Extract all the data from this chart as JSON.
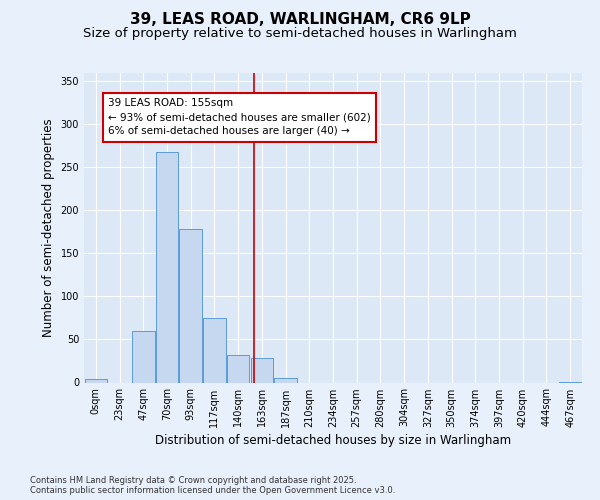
{
  "title": "39, LEAS ROAD, WARLINGHAM, CR6 9LP",
  "subtitle": "Size of property relative to semi-detached houses in Warlingham",
  "xlabel": "Distribution of semi-detached houses by size in Warlingham",
  "ylabel": "Number of semi-detached properties",
  "footnote": "Contains HM Land Registry data © Crown copyright and database right 2025.\nContains public sector information licensed under the Open Government Licence v3.0.",
  "bin_labels": [
    "0sqm",
    "23sqm",
    "47sqm",
    "70sqm",
    "93sqm",
    "117sqm",
    "140sqm",
    "163sqm",
    "187sqm",
    "210sqm",
    "234sqm",
    "257sqm",
    "280sqm",
    "304sqm",
    "327sqm",
    "350sqm",
    "374sqm",
    "397sqm",
    "420sqm",
    "444sqm",
    "467sqm"
  ],
  "bar_values": [
    4,
    0,
    60,
    268,
    178,
    75,
    32,
    28,
    5,
    0,
    0,
    0,
    0,
    0,
    0,
    0,
    0,
    0,
    0,
    0,
    1
  ],
  "bar_color": "#c5d8f0",
  "bar_edge_color": "#5b9bd5",
  "property_size": 155,
  "property_label": "39 LEAS ROAD: 155sqm",
  "pct_smaller": 93,
  "n_smaller": 602,
  "pct_larger": 6,
  "n_larger": 40,
  "vline_x_index": 6.652,
  "vline_color": "#cc0000",
  "annotation_box_color": "#cc0000",
  "annotation_text_line1": "39 LEAS ROAD: 155sqm",
  "annotation_text_line2": "← 93% of semi-detached houses are smaller (602)",
  "annotation_text_line3": "6% of semi-detached houses are larger (40) →",
  "ylim": [
    0,
    360
  ],
  "yticks": [
    0,
    50,
    100,
    150,
    200,
    250,
    300,
    350
  ],
  "background_color": "#e8f0fb",
  "plot_background_color": "#dde8f7",
  "grid_color": "#ffffff",
  "title_fontsize": 11,
  "subtitle_fontsize": 9.5,
  "axis_label_fontsize": 8.5,
  "tick_fontsize": 7,
  "annotation_fontsize": 7.5,
  "footnote_fontsize": 6
}
